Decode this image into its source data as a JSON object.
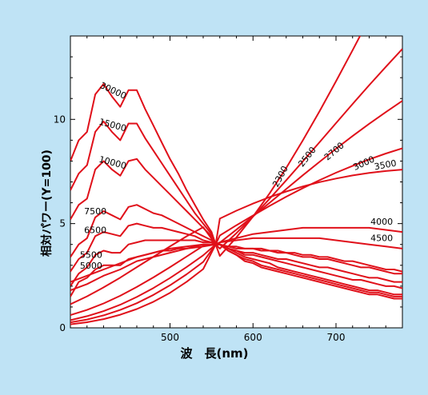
{
  "colors": {
    "background": "#bfe3f5",
    "plot_bg": "#ffffff",
    "curve": "#e0101a",
    "axis": "#000000"
  },
  "chart_data": {
    "type": "line",
    "title": "",
    "xlabel": "波　長(nm)",
    "ylabel": "相対パワー(Y=100)",
    "xlim": [
      380,
      780
    ],
    "ylim": [
      0,
      14
    ],
    "xticks": [
      500,
      600,
      700
    ],
    "yticks": [
      0,
      5,
      10
    ],
    "grid": false,
    "series": [
      {
        "name": "2300",
        "x": [
          380,
          400,
          420,
          440,
          460,
          480,
          500,
          520,
          540,
          555,
          560,
          580,
          600,
          620,
          640,
          660,
          680,
          700,
          720,
          740,
          760,
          780
        ],
        "y": [
          0.17,
          0.27,
          0.42,
          0.63,
          0.9,
          1.25,
          1.68,
          2.21,
          2.82,
          4.0,
          3.45,
          4.34,
          5.34,
          6.45,
          7.67,
          8.99,
          10.38,
          11.83,
          13.32,
          14.84,
          16.36,
          17.87
        ]
      },
      {
        "name": "2500",
        "x": [
          380,
          400,
          420,
          440,
          460,
          480,
          500,
          520,
          540,
          555,
          560,
          580,
          600,
          620,
          640,
          660,
          680,
          700,
          720,
          740,
          760,
          780
        ],
        "y": [
          0.26,
          0.4,
          0.6,
          0.86,
          1.18,
          1.58,
          2.04,
          2.57,
          3.16,
          4.0,
          3.8,
          4.54,
          5.34,
          6.19,
          7.08,
          7.98,
          8.9,
          9.82,
          10.74,
          11.64,
          12.52,
          13.38
        ]
      },
      {
        "name": "2700",
        "x": [
          380,
          400,
          420,
          440,
          460,
          480,
          500,
          520,
          540,
          555,
          560,
          580,
          600,
          620,
          640,
          660,
          680,
          700,
          720,
          740,
          760,
          780
        ],
        "y": [
          0.37,
          0.56,
          0.8,
          1.11,
          1.48,
          1.91,
          2.39,
          2.92,
          3.48,
          4.0,
          4.09,
          4.71,
          5.35,
          6.0,
          6.66,
          7.32,
          7.96,
          8.59,
          9.2,
          9.79,
          10.35,
          10.89
        ]
      },
      {
        "name": "3000",
        "x": [
          380,
          400,
          420,
          440,
          460,
          480,
          500,
          520,
          540,
          555,
          560,
          580,
          600,
          620,
          640,
          660,
          680,
          700,
          720,
          740,
          760,
          780
        ],
        "y": [
          0.61,
          0.86,
          1.17,
          1.54,
          1.96,
          2.42,
          2.91,
          3.42,
          3.93,
          4.0,
          4.43,
          4.92,
          5.39,
          5.85,
          6.29,
          6.7,
          7.08,
          7.44,
          7.77,
          8.08,
          8.36,
          8.61
        ]
      },
      {
        "name": "3500",
        "x": [
          380,
          400,
          420,
          440,
          460,
          480,
          500,
          520,
          540,
          555,
          560,
          580,
          600,
          620,
          640,
          660,
          680,
          700,
          720,
          740,
          760,
          780
        ],
        "y": [
          1.13,
          1.51,
          1.94,
          2.41,
          2.91,
          3.41,
          3.91,
          4.39,
          4.83,
          4.0,
          5.24,
          5.62,
          5.96,
          6.27,
          6.54,
          6.78,
          6.99,
          7.16,
          7.31,
          7.43,
          7.52,
          7.59
        ]
      },
      {
        "name": "4000",
        "x": [
          380,
          400,
          420,
          440,
          460,
          480,
          500,
          520,
          540,
          555,
          560,
          580,
          600,
          620,
          640,
          660,
          680,
          700,
          720,
          740,
          760,
          780
        ],
        "y": [
          1.8,
          2.1,
          2.5,
          2.8,
          3.2,
          3.4,
          3.6,
          3.8,
          3.9,
          4.0,
          4.1,
          4.3,
          4.5,
          4.6,
          4.7,
          4.8,
          4.8,
          4.8,
          4.8,
          4.8,
          4.7,
          4.6
        ]
      },
      {
        "name": "4500",
        "x": [
          380,
          400,
          420,
          440,
          460,
          480,
          500,
          520,
          540,
          555,
          560,
          580,
          600,
          620,
          640,
          660,
          680,
          700,
          720,
          740,
          760,
          780
        ],
        "y": [
          2.2,
          2.5,
          2.8,
          3.1,
          3.4,
          3.6,
          3.8,
          3.9,
          4.0,
          4.0,
          4.1,
          4.2,
          4.3,
          4.3,
          4.3,
          4.3,
          4.3,
          4.2,
          4.1,
          4.0,
          3.9,
          3.8
        ]
      },
      {
        "name": "5000",
        "x": [
          380,
          390,
          400,
          410,
          420,
          430,
          440,
          450,
          460,
          470,
          480,
          490,
          500,
          510,
          520,
          530,
          540,
          550,
          555,
          560,
          570,
          580,
          590,
          600,
          610,
          620,
          630,
          640,
          650,
          660,
          670,
          680,
          690,
          700,
          710,
          720,
          730,
          740,
          750,
          760,
          770,
          780
        ],
        "y": [
          1.5,
          2.2,
          2.4,
          2.8,
          3.0,
          3.0,
          3.0,
          3.3,
          3.4,
          3.5,
          3.6,
          3.7,
          3.7,
          3.8,
          3.8,
          3.9,
          4.0,
          4.0,
          4.0,
          4.0,
          3.9,
          3.9,
          3.8,
          3.8,
          3.8,
          3.7,
          3.7,
          3.6,
          3.6,
          3.5,
          3.5,
          3.4,
          3.4,
          3.3,
          3.2,
          3.2,
          3.1,
          3.0,
          2.9,
          2.8,
          2.8,
          2.7
        ]
      },
      {
        "name": "5500",
        "x": [
          380,
          390,
          400,
          410,
          420,
          430,
          440,
          450,
          460,
          470,
          480,
          490,
          500,
          510,
          520,
          530,
          540,
          550,
          555,
          560,
          570,
          580,
          590,
          600,
          610,
          620,
          630,
          640,
          650,
          660,
          670,
          680,
          690,
          700,
          710,
          720,
          730,
          740,
          750,
          760,
          770,
          780
        ],
        "y": [
          2.0,
          2.6,
          2.9,
          3.5,
          3.7,
          3.6,
          3.6,
          4.0,
          4.1,
          4.2,
          4.2,
          4.2,
          4.2,
          4.2,
          4.2,
          4.2,
          4.1,
          4.1,
          4.0,
          4.0,
          3.9,
          3.8,
          3.8,
          3.8,
          3.7,
          3.7,
          3.6,
          3.6,
          3.5,
          3.4,
          3.4,
          3.3,
          3.3,
          3.2,
          3.1,
          3.0,
          2.9,
          2.9,
          2.8,
          2.7,
          2.6,
          2.6
        ]
      },
      {
        "name": "6500",
        "x": [
          380,
          390,
          400,
          410,
          420,
          430,
          440,
          450,
          460,
          470,
          480,
          490,
          500,
          510,
          520,
          530,
          540,
          550,
          555,
          560,
          570,
          580,
          590,
          600,
          610,
          620,
          630,
          640,
          650,
          660,
          670,
          680,
          690,
          700,
          710,
          720,
          730,
          740,
          750,
          760,
          770,
          780
        ],
        "y": [
          2.7,
          3.3,
          3.6,
          4.4,
          4.6,
          4.5,
          4.4,
          4.9,
          5.0,
          4.9,
          4.8,
          4.8,
          4.7,
          4.6,
          4.5,
          4.4,
          4.2,
          4.1,
          4.0,
          4.0,
          3.8,
          3.7,
          3.6,
          3.6,
          3.5,
          3.4,
          3.3,
          3.3,
          3.2,
          3.1,
          3.0,
          2.9,
          2.9,
          2.8,
          2.7,
          2.6,
          2.5,
          2.4,
          2.4,
          2.3,
          2.2,
          2.2
        ]
      },
      {
        "name": "7500",
        "x": [
          380,
          390,
          400,
          410,
          420,
          430,
          440,
          450,
          460,
          470,
          480,
          490,
          500,
          510,
          520,
          530,
          540,
          550,
          555,
          560,
          570,
          580,
          590,
          600,
          610,
          620,
          630,
          640,
          650,
          660,
          670,
          680,
          690,
          700,
          710,
          720,
          730,
          740,
          750,
          760,
          770,
          780
        ],
        "y": [
          3.4,
          4.0,
          4.3,
          5.3,
          5.6,
          5.4,
          5.2,
          5.8,
          5.9,
          5.7,
          5.5,
          5.4,
          5.2,
          5.0,
          4.8,
          4.6,
          4.4,
          4.2,
          4.0,
          4.0,
          3.8,
          3.7,
          3.5,
          3.5,
          3.4,
          3.3,
          3.2,
          3.1,
          3.0,
          2.9,
          2.8,
          2.7,
          2.6,
          2.5,
          2.4,
          2.3,
          2.3,
          2.2,
          2.1,
          2.0,
          2.0,
          1.9
        ]
      },
      {
        "name": "10000",
        "x": [
          380,
          390,
          400,
          410,
          420,
          430,
          440,
          450,
          460,
          470,
          480,
          490,
          500,
          510,
          520,
          530,
          540,
          550,
          555,
          560,
          570,
          580,
          590,
          600,
          610,
          620,
          630,
          640,
          650,
          660,
          670,
          680,
          690,
          700,
          710,
          720,
          730,
          740,
          750,
          760,
          770,
          780
        ],
        "y": [
          5.2,
          5.9,
          6.2,
          7.6,
          8.0,
          7.6,
          7.3,
          8.0,
          8.1,
          7.6,
          7.2,
          6.8,
          6.4,
          6.0,
          5.6,
          5.2,
          4.8,
          4.4,
          4.0,
          4.0,
          3.8,
          3.6,
          3.4,
          3.3,
          3.2,
          3.1,
          2.9,
          2.8,
          2.7,
          2.6,
          2.5,
          2.4,
          2.3,
          2.2,
          2.1,
          2.0,
          1.9,
          1.8,
          1.8,
          1.7,
          1.6,
          1.6
        ]
      },
      {
        "name": "15000",
        "x": [
          380,
          390,
          400,
          410,
          420,
          430,
          440,
          450,
          460,
          470,
          480,
          490,
          500,
          510,
          520,
          530,
          540,
          550,
          555,
          560,
          570,
          580,
          590,
          600,
          610,
          620,
          630,
          640,
          650,
          660,
          670,
          680,
          690,
          700,
          710,
          720,
          730,
          740,
          750,
          760,
          770,
          780
        ],
        "y": [
          6.6,
          7.4,
          7.8,
          9.4,
          9.9,
          9.4,
          9.0,
          9.8,
          9.8,
          9.1,
          8.5,
          7.9,
          7.3,
          6.7,
          6.1,
          5.5,
          5.0,
          4.5,
          4.0,
          4.0,
          3.7,
          3.5,
          3.3,
          3.2,
          3.0,
          2.9,
          2.8,
          2.7,
          2.6,
          2.5,
          2.4,
          2.3,
          2.2,
          2.1,
          2.0,
          1.9,
          1.8,
          1.7,
          1.7,
          1.6,
          1.5,
          1.5
        ]
      },
      {
        "name": "30000",
        "x": [
          380,
          390,
          400,
          410,
          420,
          430,
          440,
          450,
          460,
          470,
          480,
          490,
          500,
          510,
          520,
          530,
          540,
          550,
          555,
          560,
          570,
          580,
          590,
          600,
          610,
          620,
          630,
          640,
          650,
          660,
          670,
          680,
          690,
          700,
          710,
          720,
          730,
          740,
          750,
          760,
          770,
          780
        ],
        "y": [
          8.0,
          9.0,
          9.4,
          11.2,
          11.7,
          11.1,
          10.6,
          11.4,
          11.4,
          10.5,
          9.7,
          8.9,
          8.1,
          7.4,
          6.6,
          5.9,
          5.2,
          4.6,
          4.0,
          4.0,
          3.7,
          3.5,
          3.2,
          3.1,
          2.9,
          2.8,
          2.7,
          2.6,
          2.5,
          2.4,
          2.3,
          2.2,
          2.1,
          2.0,
          1.9,
          1.8,
          1.7,
          1.6,
          1.6,
          1.5,
          1.4,
          1.4
        ]
      }
    ],
    "annotations": [
      "2300",
      "2500",
      "2700",
      "3000",
      "3500",
      "4000",
      "4500",
      "5000",
      "5500",
      "6500",
      "7500",
      "10000",
      "15000",
      "30000"
    ]
  }
}
